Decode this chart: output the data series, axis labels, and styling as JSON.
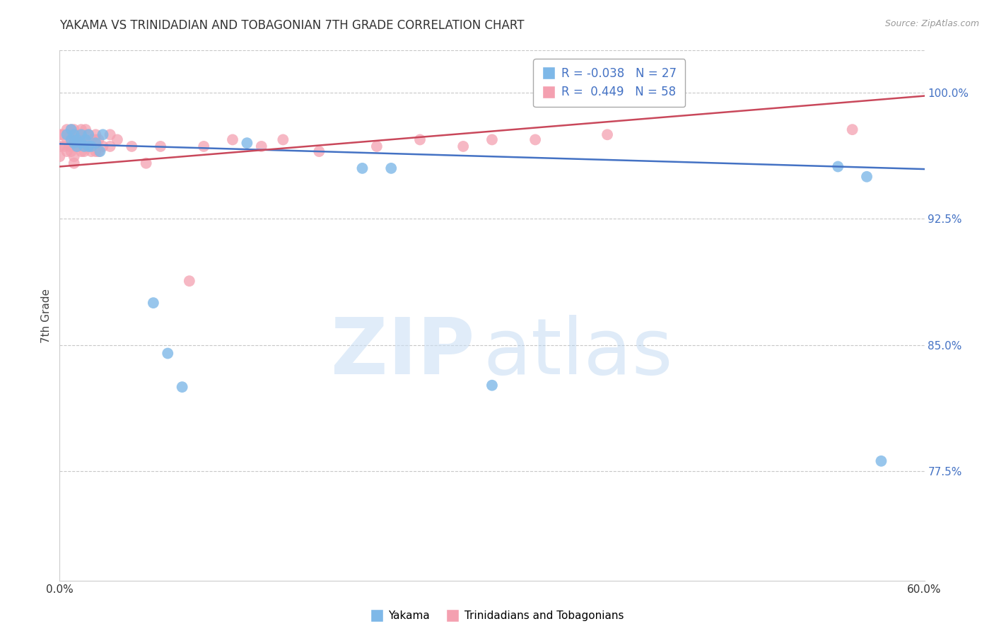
{
  "title": "YAKAMA VS TRINIDADIAN AND TOBAGONIAN 7TH GRADE CORRELATION CHART",
  "source": "Source: ZipAtlas.com",
  "ylabel": "7th Grade",
  "xlim": [
    0.0,
    0.6
  ],
  "ylim": [
    0.71,
    1.025
  ],
  "ytick_positions": [
    0.775,
    0.85,
    0.925,
    1.0
  ],
  "ytick_labels": [
    "77.5%",
    "85.0%",
    "92.5%",
    "100.0%"
  ],
  "xtick_positions": [
    0.0,
    0.6
  ],
  "xtick_labels": [
    "0.0%",
    "60.0%"
  ],
  "grid_color": "#c8c8c8",
  "background_color": "#ffffff",
  "legend_R_blue": "-0.038",
  "legend_N_blue": "27",
  "legend_R_pink": "0.449",
  "legend_N_pink": "58",
  "blue_color": "#7EB8E8",
  "pink_color": "#F4A0B0",
  "blue_line_color": "#4472C4",
  "pink_line_color": "#C9485B",
  "blue_scatter_x": [
    0.005,
    0.008,
    0.008,
    0.01,
    0.01,
    0.012,
    0.012,
    0.015,
    0.015,
    0.017,
    0.018,
    0.02,
    0.02,
    0.022,
    0.025,
    0.028,
    0.03,
    0.065,
    0.075,
    0.085,
    0.13,
    0.21,
    0.23,
    0.3,
    0.54,
    0.56,
    0.57
  ],
  "blue_scatter_y": [
    0.975,
    0.978,
    0.972,
    0.975,
    0.97,
    0.972,
    0.968,
    0.975,
    0.97,
    0.968,
    0.972,
    0.975,
    0.968,
    0.968,
    0.97,
    0.965,
    0.975,
    0.875,
    0.845,
    0.825,
    0.97,
    0.955,
    0.955,
    0.826,
    0.956,
    0.95,
    0.781
  ],
  "pink_scatter_x": [
    0.0,
    0.0,
    0.0,
    0.002,
    0.003,
    0.005,
    0.005,
    0.005,
    0.007,
    0.007,
    0.008,
    0.008,
    0.008,
    0.01,
    0.01,
    0.01,
    0.01,
    0.01,
    0.012,
    0.012,
    0.013,
    0.013,
    0.015,
    0.015,
    0.015,
    0.017,
    0.017,
    0.018,
    0.018,
    0.02,
    0.02,
    0.022,
    0.022,
    0.025,
    0.025,
    0.025,
    0.027,
    0.027,
    0.03,
    0.035,
    0.035,
    0.04,
    0.05,
    0.06,
    0.07,
    0.09,
    0.1,
    0.12,
    0.14,
    0.155,
    0.18,
    0.22,
    0.25,
    0.28,
    0.3,
    0.33,
    0.38,
    0.55
  ],
  "pink_scatter_y": [
    0.975,
    0.968,
    0.962,
    0.975,
    0.968,
    0.978,
    0.972,
    0.965,
    0.975,
    0.968,
    0.978,
    0.972,
    0.965,
    0.978,
    0.972,
    0.968,
    0.962,
    0.958,
    0.975,
    0.968,
    0.975,
    0.968,
    0.978,
    0.972,
    0.965,
    0.972,
    0.965,
    0.978,
    0.968,
    0.975,
    0.968,
    0.972,
    0.965,
    0.975,
    0.972,
    0.965,
    0.972,
    0.965,
    0.968,
    0.975,
    0.968,
    0.972,
    0.968,
    0.958,
    0.968,
    0.888,
    0.968,
    0.972,
    0.968,
    0.972,
    0.965,
    0.968,
    0.972,
    0.968,
    0.972,
    0.972,
    0.975,
    0.978
  ],
  "blue_line_x": [
    0.0,
    0.6
  ],
  "blue_line_y": [
    0.9695,
    0.9545
  ],
  "pink_line_x": [
    0.0,
    0.6
  ],
  "pink_line_y": [
    0.956,
    0.998
  ]
}
